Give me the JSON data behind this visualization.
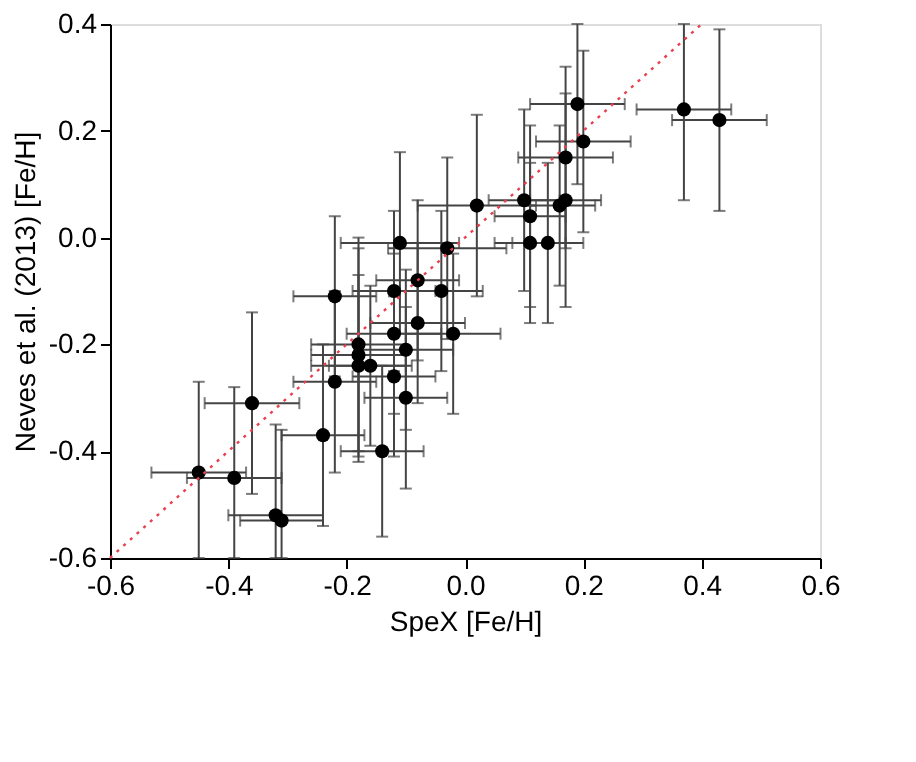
{
  "chart_data": {
    "type": "scatter",
    "xlabel": "SpeX [Fe/H]",
    "ylabel": "Neves et al. (2013) [Fe/H]",
    "xlim": [
      -0.6,
      0.6
    ],
    "xticks": [
      {
        "value": -0.6,
        "label": "-0.6"
      },
      {
        "value": -0.4,
        "label": "-0.4"
      },
      {
        "value": -0.2,
        "label": "-0.2"
      },
      {
        "value": 0,
        "label": "0.0"
      },
      {
        "value": 0.2,
        "label": "0.2"
      },
      {
        "value": 0.4,
        "label": "0.4"
      },
      {
        "value": 0.6,
        "label": "0.6"
      }
    ],
    "ylim": [
      -0.6,
      0.4
    ],
    "yticks": [
      {
        "value": -0.6,
        "label": "-0.6"
      },
      {
        "value": -0.4,
        "label": "-0.4"
      },
      {
        "value": -0.2,
        "label": "-0.2"
      },
      {
        "value": 0,
        "label": "0.0"
      },
      {
        "value": 0.2,
        "label": "0.2"
      },
      {
        "value": 0.4,
        "label": "0.4"
      }
    ],
    "grid": false,
    "marker": "circle",
    "series": [
      {
        "color": "#000000",
        "x": [
          0.19,
          0.37,
          0.43,
          0.2,
          0.17,
          0.02,
          0.1,
          0.11,
          0.16,
          0.17,
          0.11,
          0.14,
          -0.11,
          -0.03,
          -0.08,
          -0.12,
          -0.04,
          -0.22,
          -0.08,
          -0.12,
          -0.02,
          -0.18,
          -0.1,
          -0.18,
          -0.18,
          -0.16,
          -0.12,
          -0.22,
          -0.1,
          -0.36,
          -0.24,
          -0.14,
          -0.45,
          -0.39,
          -0.32,
          -0.31
        ],
        "values": [
          0.25,
          0.24,
          0.22,
          0.18,
          0.15,
          0.06,
          0.07,
          0.04,
          0.06,
          0.07,
          -0.01,
          -0.01,
          -0.01,
          -0.02,
          -0.08,
          -0.1,
          -0.1,
          -0.11,
          -0.16,
          -0.18,
          -0.18,
          -0.2,
          -0.21,
          -0.22,
          -0.24,
          -0.24,
          -0.26,
          -0.27,
          -0.3,
          -0.31,
          -0.37,
          -0.4,
          -0.44,
          -0.45,
          -0.52,
          -0.53
        ],
        "xerrors": [
          0.08,
          0.08,
          0.08,
          0.08,
          0.08,
          0.1,
          0.06,
          0.06,
          0.06,
          0.06,
          0.06,
          0.06,
          0.1,
          0.1,
          0.07,
          0.07,
          0.07,
          0.07,
          0.08,
          0.08,
          0.08,
          0.08,
          0.08,
          0.08,
          0.08,
          0.07,
          0.07,
          0.07,
          0.07,
          0.08,
          0.07,
          0.07,
          0.08,
          0.08,
          0.08,
          0.07
        ],
        "errors": [
          0.15,
          [
            0.07,
            0.4
          ],
          [
            0.05,
            0.39
          ],
          0.17,
          0.17,
          0.17,
          0.17,
          0.17,
          0.15,
          0.2,
          0.15,
          0.15,
          0.17,
          0.17,
          0.15,
          0.15,
          0.15,
          0.15,
          0.15,
          0.15,
          0.15,
          0.2,
          0.15,
          0.2,
          0.17,
          0.15,
          0.15,
          0.17,
          0.17,
          0.17,
          0.17,
          0.16,
          [
            -0.6,
            -0.27
          ],
          [
            -0.6,
            -0.28
          ],
          [
            -0.6,
            -0.35
          ],
          [
            -0.6,
            -0.36
          ]
        ]
      },
      {
        "type": "line",
        "color": "#e8404f",
        "line_style": "dotted",
        "marker": "none",
        "x": [
          -0.6,
          0.4
        ],
        "values": [
          -0.6,
          0.4
        ]
      }
    ]
  }
}
